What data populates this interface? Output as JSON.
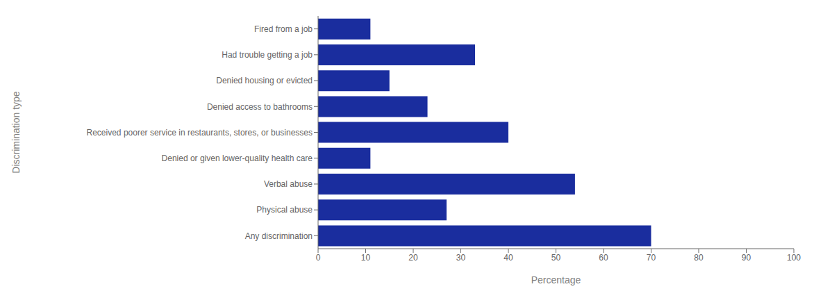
{
  "chart_data": {
    "type": "bar",
    "orientation": "horizontal",
    "categories": [
      "Fired from a job",
      "Had trouble getting a job",
      "Denied housing or evicted",
      "Denied access to bathrooms",
      "Received poorer service in restaurants, stores, or businesses",
      "Denied or given lower-quality health care",
      "Verbal abuse",
      "Physical abuse",
      "Any discrimination"
    ],
    "values": [
      11,
      33,
      15,
      23,
      40,
      11,
      54,
      27,
      70
    ],
    "color": "#1a2d9e",
    "xlabel": "Percentage",
    "ylabel": "Discrimination type",
    "xlim": [
      0,
      100
    ],
    "xticks": [
      0,
      10,
      20,
      30,
      40,
      50,
      60,
      70,
      80,
      90,
      100
    ],
    "grid": false
  }
}
